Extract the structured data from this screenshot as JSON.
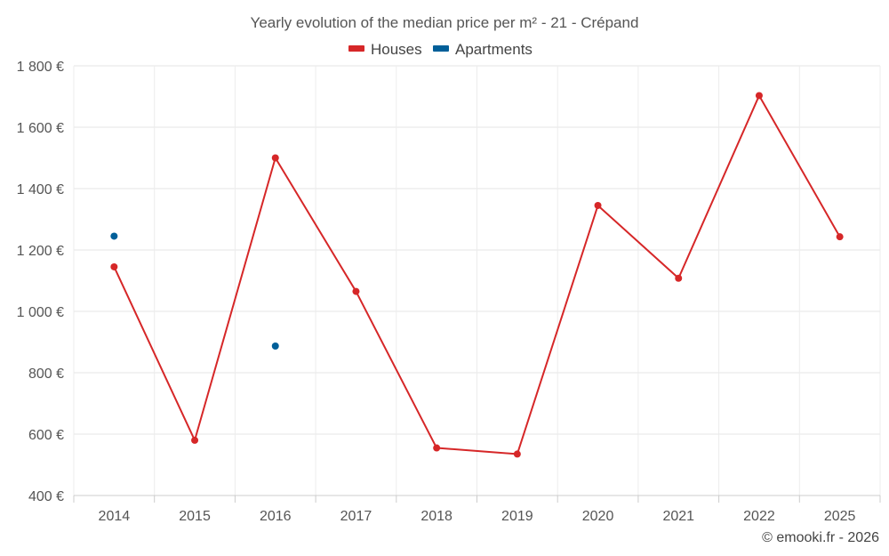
{
  "chart_data": {
    "type": "line",
    "title": "Yearly evolution of the median price per m² - 21 - Crépand",
    "x": [
      "2014",
      "2015",
      "2016",
      "2017",
      "2018",
      "2019",
      "2020",
      "2021",
      "2022",
      "2025"
    ],
    "series": [
      {
        "name": "Houses",
        "color": "#d62728",
        "values": [
          1145,
          580,
          1500,
          1065,
          555,
          535,
          1345,
          1108,
          1703,
          1243
        ]
      },
      {
        "name": "Apartments",
        "color": "#005f99",
        "values": [
          1245,
          null,
          887,
          null,
          null,
          null,
          null,
          null,
          null,
          null
        ]
      }
    ],
    "y_ticks": [
      400,
      600,
      800,
      1000,
      1200,
      1400,
      1600,
      1800
    ],
    "y_tick_labels": [
      "400 €",
      "600 €",
      "800 €",
      "1 000 €",
      "1 200 €",
      "1 400 €",
      "1 600 €",
      "1 800 €"
    ],
    "ylim": [
      400,
      1800
    ],
    "xlabel": "",
    "ylabel": "",
    "grid": true,
    "legend_position": "top-center"
  },
  "credit": "© emooki.fr - 2026"
}
